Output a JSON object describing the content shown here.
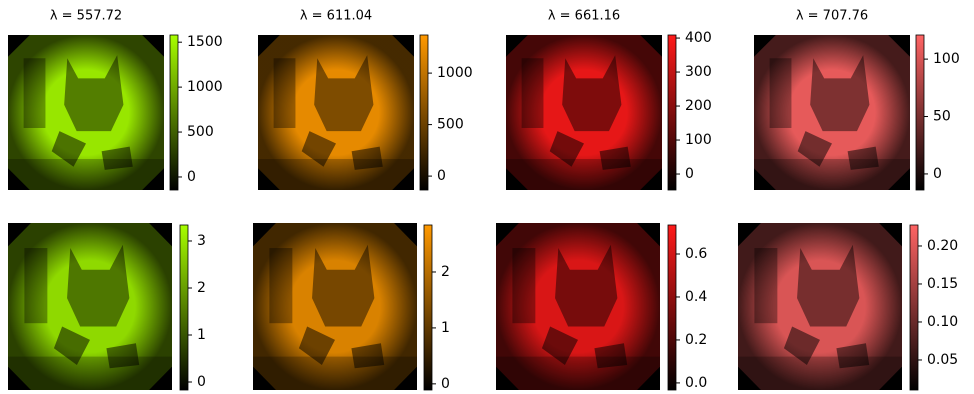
{
  "chart_data": [
    {
      "type": "image",
      "title": "λ = 557.72",
      "color": "#a8ff00",
      "clim": [
        -145,
        1580
      ],
      "cticks": [
        0,
        500,
        1000,
        1500
      ]
    },
    {
      "type": "image",
      "title": "λ = 611.04",
      "color": "#ff9900",
      "clim": [
        -135,
        1370
      ],
      "cticks": [
        0,
        500,
        1000
      ]
    },
    {
      "type": "image",
      "title": "λ = 661.16",
      "color": "#ff1a1a",
      "clim": [
        -47,
        409
      ],
      "cticks": [
        0,
        100,
        200,
        300,
        400
      ]
    },
    {
      "type": "image",
      "title": "λ = 707.76",
      "color": "#ff6464",
      "clim": [
        -14,
        121
      ],
      "cticks": [
        0,
        50,
        100
      ]
    },
    {
      "type": "image",
      "color": "#a8ff00",
      "clim": [
        -0.17,
        3.34
      ],
      "cticks": [
        0,
        1,
        2,
        3
      ]
    },
    {
      "type": "image",
      "color": "#ff9900",
      "clim": [
        -0.11,
        2.84
      ],
      "cticks": [
        0,
        1,
        2
      ]
    },
    {
      "type": "image",
      "color": "#ff1a1a",
      "clim": [
        -0.033,
        0.735
      ],
      "cticks": [
        {
          "value": 0.0,
          "label": "0.0"
        },
        0.2,
        0.4,
        0.6
      ]
    },
    {
      "type": "image",
      "color": "#ff6464",
      "clim": [
        0.0105,
        0.2276
      ],
      "cticks": [
        0.05,
        {
          "value": 0.1,
          "label": "0.10"
        },
        0.15,
        {
          "value": 0.2,
          "label": "0.20"
        }
      ]
    }
  ]
}
